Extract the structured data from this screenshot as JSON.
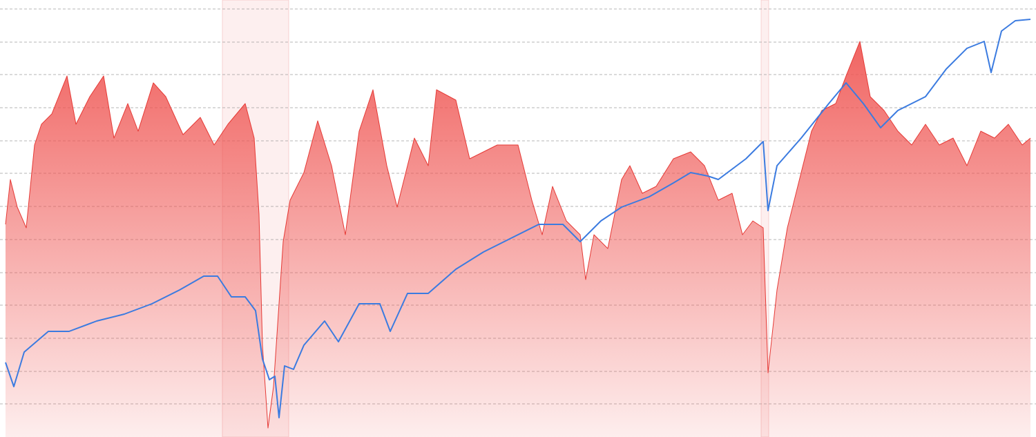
{
  "chart_data": {
    "type": "line",
    "xlim": [
      8,
      1492
    ],
    "ylim": [
      0,
      633
    ],
    "yticks": [
      48,
      95,
      143,
      191,
      238,
      286,
      334,
      382,
      429,
      477,
      525,
      572,
      620
    ],
    "grid": true,
    "shaded_regions": [
      [
        322,
        418
      ],
      [
        1102,
        1113
      ]
    ],
    "series": [
      {
        "color": "#e53935",
        "fill": true,
        "x": [
          8,
          15,
          25,
          38,
          50,
          60,
          75,
          97,
          110,
          130,
          150,
          165,
          185,
          200,
          222,
          240,
          265,
          290,
          310,
          330,
          355,
          368,
          375,
          380,
          388,
          396,
          402,
          410,
          420,
          440,
          460,
          480,
          500,
          520,
          540,
          560,
          575,
          600,
          620,
          632,
          660,
          680,
          720,
          750,
          770,
          785,
          800,
          820,
          840,
          848,
          860,
          880,
          900,
          912,
          930,
          950,
          975,
          1000,
          1020,
          1040,
          1060,
          1075,
          1090,
          1105,
          1112,
          1125,
          1140,
          1160,
          1175,
          1190,
          1210,
          1225,
          1245,
          1260,
          1280,
          1300,
          1320,
          1340,
          1360,
          1380,
          1400,
          1420,
          1440,
          1460,
          1480,
          1492
        ],
        "values": [
          308,
          373,
          333,
          303,
          423,
          453,
          468,
          523,
          453,
          493,
          523,
          433,
          483,
          443,
          513,
          493,
          438,
          463,
          423,
          453,
          483,
          433,
          323,
          133,
          13,
          73,
          163,
          283,
          343,
          383,
          458,
          393,
          293,
          443,
          503,
          393,
          333,
          433,
          393,
          503,
          488,
          403,
          423,
          423,
          343,
          293,
          363,
          313,
          293,
          228,
          293,
          273,
          373,
          393,
          353,
          363,
          403,
          413,
          393,
          343,
          353,
          293,
          313,
          303,
          93,
          213,
          303,
          383,
          443,
          473,
          483,
          523,
          573,
          493,
          473,
          443,
          423,
          453,
          423,
          433,
          393,
          443,
          433,
          453,
          423,
          433
        ]
      },
      {
        "color": "#3b7be0",
        "fill": false,
        "x": [
          8,
          20,
          35,
          70,
          100,
          140,
          180,
          220,
          260,
          295,
          315,
          335,
          355,
          370,
          380,
          390,
          398,
          404,
          412,
          425,
          440,
          470,
          490,
          520,
          550,
          565,
          590,
          620,
          660,
          700,
          740,
          780,
          815,
          840,
          870,
          900,
          940,
          975,
          1000,
          1025,
          1040,
          1080,
          1105,
          1112,
          1125,
          1160,
          1200,
          1225,
          1250,
          1275,
          1300,
          1340,
          1370,
          1400,
          1425,
          1435,
          1450,
          1470,
          1492
        ],
        "values": [
          108,
          73,
          123,
          153,
          153,
          168,
          178,
          193,
          213,
          233,
          233,
          203,
          203,
          183,
          113,
          83,
          88,
          28,
          103,
          98,
          133,
          168,
          138,
          193,
          193,
          153,
          208,
          208,
          243,
          268,
          288,
          308,
          308,
          283,
          313,
          333,
          348,
          368,
          383,
          378,
          373,
          403,
          428,
          328,
          393,
          433,
          483,
          513,
          483,
          448,
          473,
          493,
          533,
          563,
          573,
          528,
          588,
          603,
          605
        ]
      }
    ]
  }
}
